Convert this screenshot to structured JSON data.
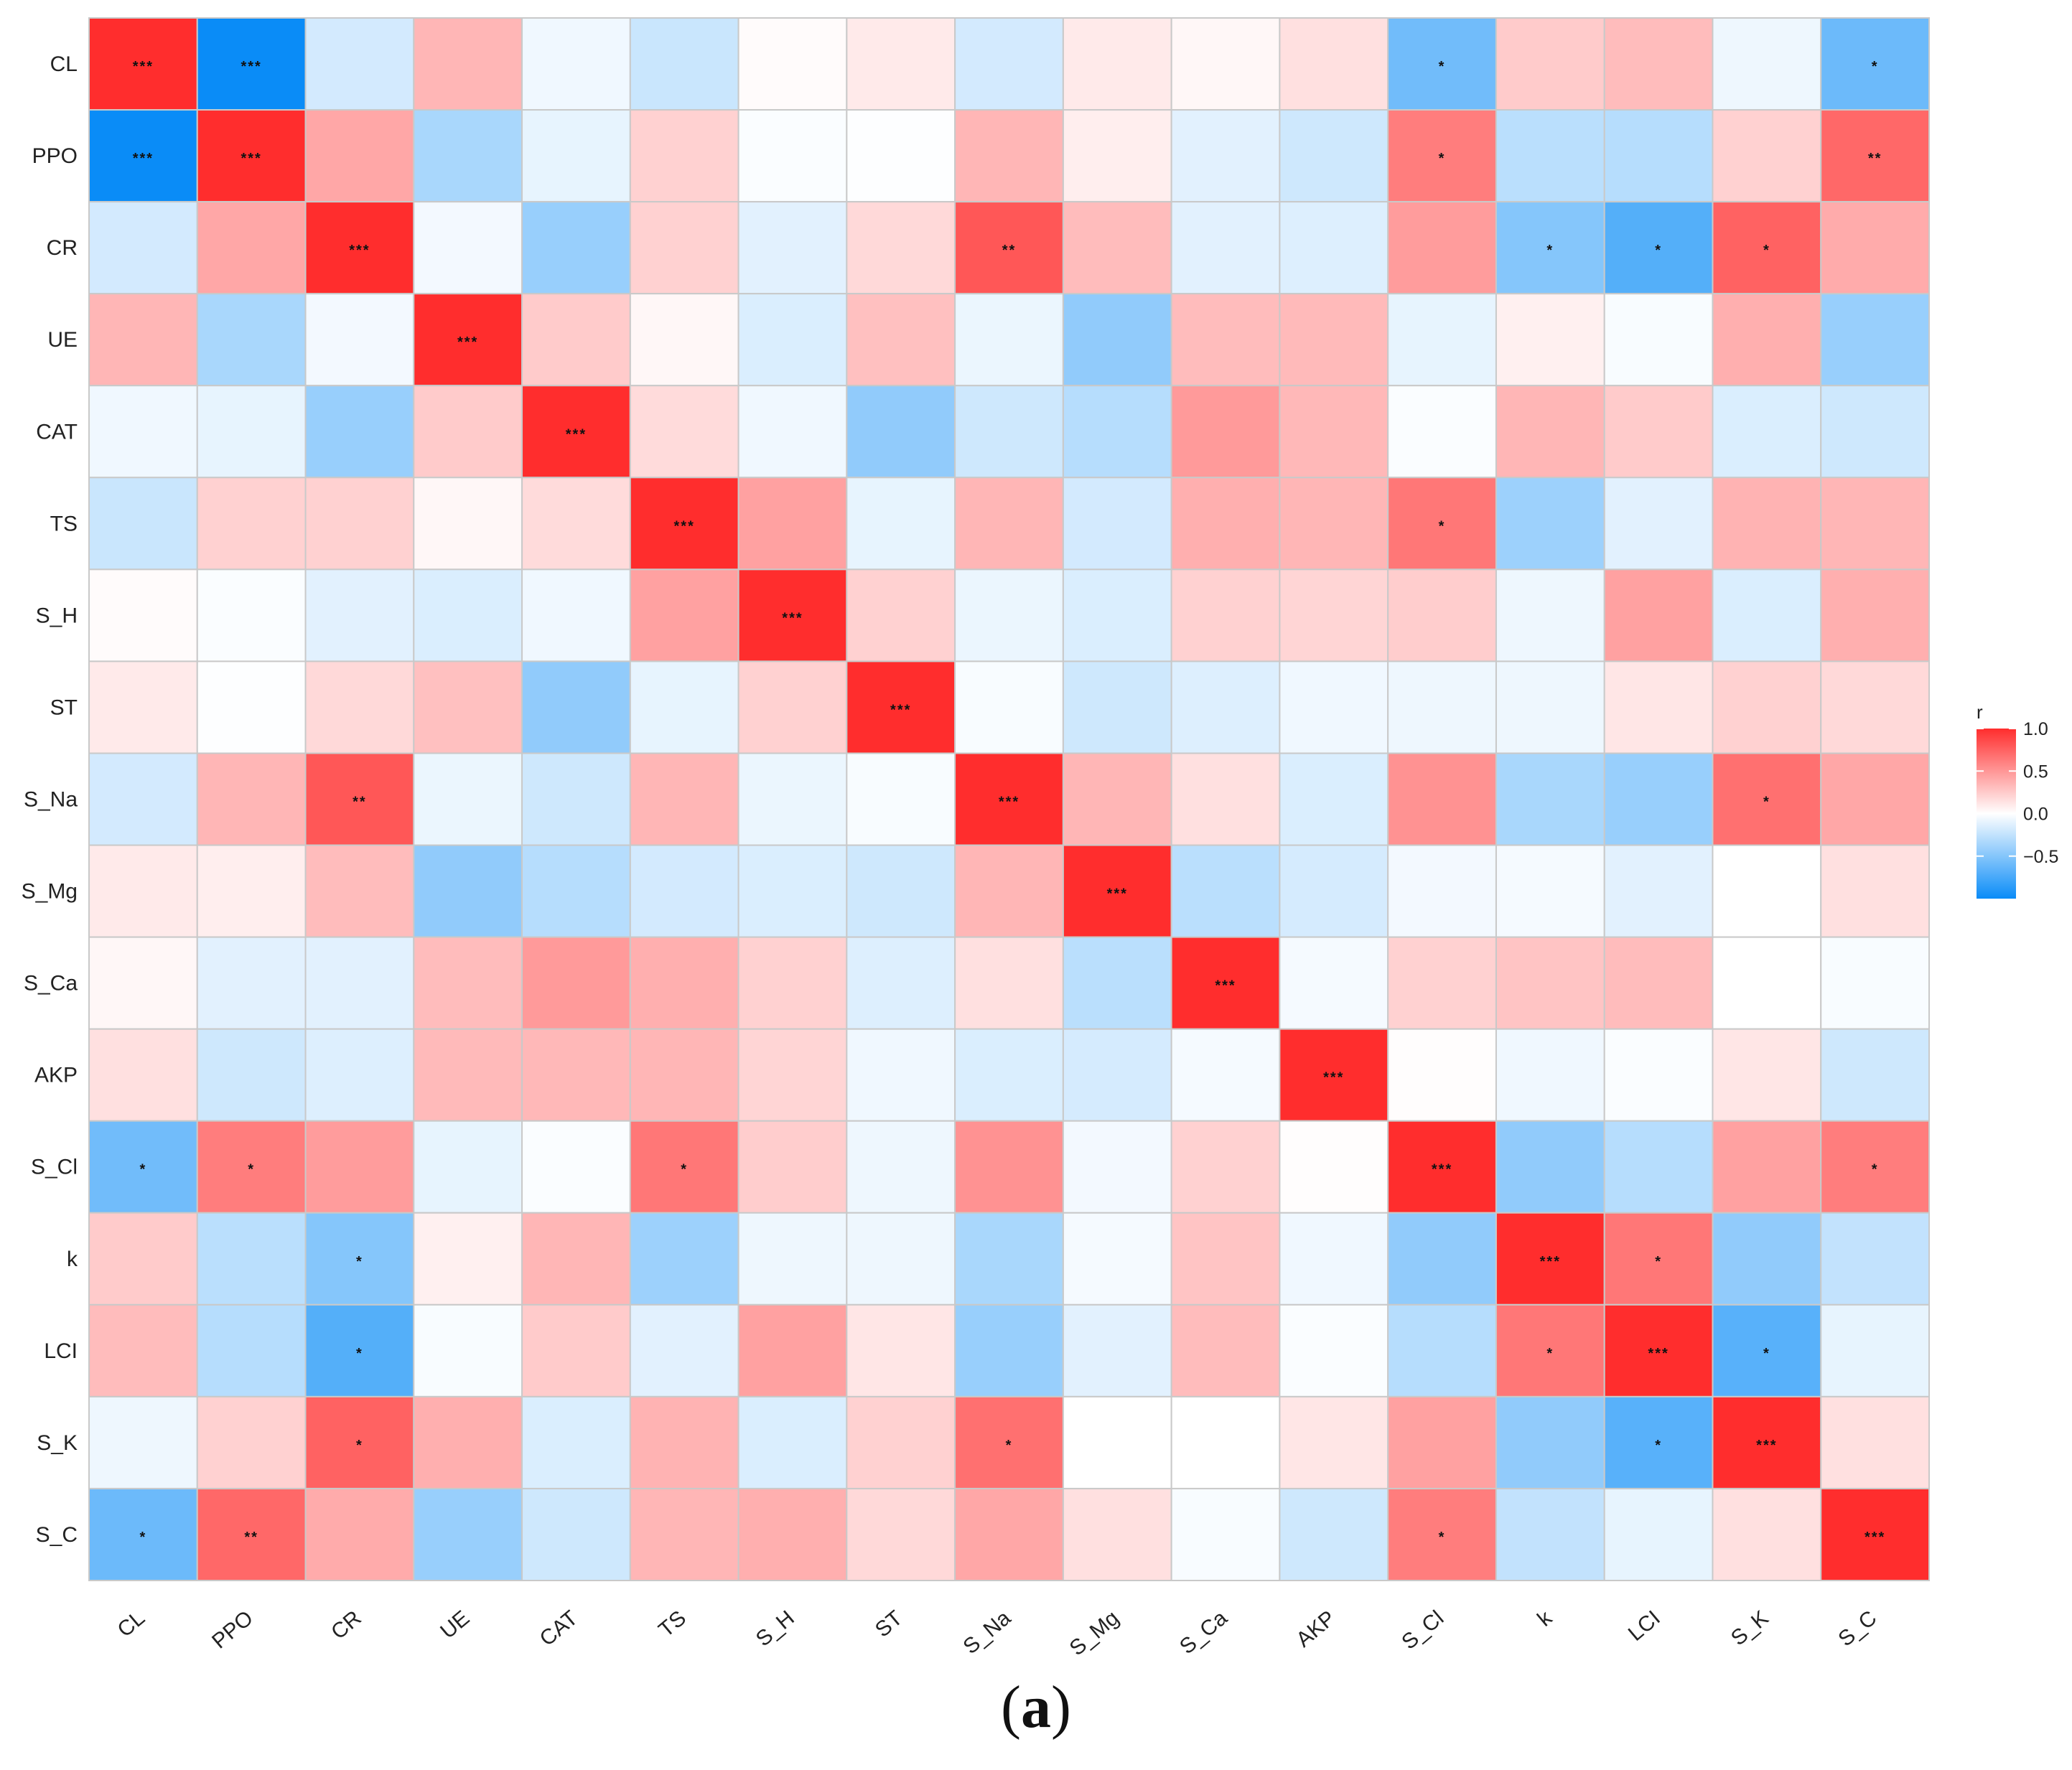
{
  "chart_data": {
    "type": "heatmap",
    "title": "",
    "panel_letter": "a",
    "variables": [
      "CL",
      "PPO",
      "CR",
      "UE",
      "CAT",
      "TS",
      "S_H",
      "ST",
      "S_Na",
      "S_Mg",
      "S_Ca",
      "AKP",
      "S_Cl",
      "k",
      "LCI",
      "S_K",
      "S_C"
    ],
    "matrix": [
      [
        1.0,
        -1.0,
        -0.18,
        0.35,
        -0.06,
        -0.22,
        0.02,
        0.1,
        -0.18,
        0.1,
        0.04,
        0.15,
        -0.58,
        0.25,
        0.32,
        -0.07,
        -0.6
      ],
      [
        -1.0,
        1.0,
        0.42,
        -0.35,
        -0.1,
        0.22,
        -0.02,
        -0.01,
        0.35,
        0.08,
        -0.12,
        -0.2,
        0.62,
        -0.28,
        -0.3,
        0.22,
        0.72
      ],
      [
        -0.18,
        0.42,
        1.0,
        -0.05,
        -0.42,
        0.22,
        -0.12,
        0.18,
        0.8,
        0.32,
        -0.12,
        -0.14,
        0.47,
        -0.5,
        -0.7,
        0.75,
        0.4
      ],
      [
        0.35,
        -0.35,
        -0.05,
        1.0,
        0.25,
        0.04,
        -0.15,
        0.3,
        -0.08,
        -0.45,
        0.32,
        0.33,
        -0.1,
        0.07,
        -0.03,
        0.38,
        -0.42
      ],
      [
        -0.06,
        -0.1,
        -0.42,
        0.25,
        1.0,
        0.17,
        -0.06,
        -0.45,
        -0.2,
        -0.3,
        0.48,
        0.34,
        -0.02,
        0.35,
        0.25,
        -0.15,
        -0.2
      ],
      [
        -0.22,
        0.22,
        0.22,
        0.04,
        0.17,
        1.0,
        0.45,
        -0.1,
        0.35,
        -0.18,
        0.38,
        0.35,
        0.65,
        -0.4,
        -0.12,
        0.36,
        0.35
      ],
      [
        0.02,
        -0.02,
        -0.12,
        -0.15,
        -0.06,
        0.45,
        1.0,
        0.22,
        -0.08,
        -0.15,
        0.22,
        0.2,
        0.24,
        -0.07,
        0.45,
        -0.15,
        0.38
      ],
      [
        0.1,
        -0.01,
        0.18,
        0.3,
        -0.45,
        -0.1,
        0.22,
        1.0,
        -0.03,
        -0.2,
        -0.14,
        -0.06,
        -0.07,
        -0.07,
        0.12,
        0.22,
        0.18
      ],
      [
        -0.18,
        0.35,
        0.8,
        -0.08,
        -0.2,
        0.35,
        -0.08,
        -0.03,
        1.0,
        0.35,
        0.15,
        -0.15,
        0.52,
        -0.35,
        -0.42,
        0.68,
        0.42
      ],
      [
        0.1,
        0.08,
        0.32,
        -0.45,
        -0.3,
        -0.18,
        -0.15,
        -0.2,
        0.35,
        1.0,
        -0.28,
        -0.17,
        -0.05,
        -0.04,
        -0.12,
        0.0,
        0.15
      ],
      [
        0.04,
        -0.12,
        -0.12,
        0.32,
        0.48,
        0.38,
        0.22,
        -0.14,
        0.15,
        -0.28,
        1.0,
        -0.04,
        0.22,
        0.28,
        0.32,
        0.0,
        -0.03
      ],
      [
        0.15,
        -0.2,
        -0.14,
        0.33,
        0.34,
        0.35,
        0.2,
        -0.06,
        -0.15,
        -0.17,
        -0.04,
        1.0,
        0.01,
        -0.06,
        -0.02,
        0.12,
        -0.2
      ],
      [
        -0.58,
        0.62,
        0.47,
        -0.1,
        -0.02,
        0.65,
        0.24,
        -0.07,
        0.52,
        -0.05,
        0.22,
        0.01,
        1.0,
        -0.45,
        -0.3,
        0.45,
        0.62
      ],
      [
        0.25,
        -0.28,
        -0.5,
        0.07,
        0.35,
        -0.4,
        -0.07,
        -0.07,
        -0.35,
        -0.04,
        0.28,
        -0.06,
        -0.45,
        1.0,
        0.65,
        -0.45,
        -0.25
      ],
      [
        0.32,
        -0.3,
        -0.7,
        -0.03,
        0.25,
        -0.12,
        0.45,
        0.12,
        -0.42,
        -0.12,
        0.32,
        -0.02,
        -0.3,
        0.65,
        1.0,
        -0.68,
        -0.1
      ],
      [
        -0.07,
        0.22,
        0.75,
        0.38,
        -0.15,
        0.36,
        -0.15,
        0.22,
        0.68,
        0.0,
        0.0,
        0.12,
        0.45,
        -0.45,
        -0.68,
        1.0,
        0.15
      ],
      [
        -0.6,
        0.72,
        0.4,
        -0.42,
        -0.2,
        0.35,
        0.38,
        0.18,
        0.42,
        0.15,
        -0.03,
        -0.2,
        0.62,
        -0.25,
        -0.1,
        0.15,
        1.0
      ]
    ],
    "significance": [
      [
        "***",
        "***",
        "",
        "",
        "",
        "",
        "",
        "",
        "",
        "",
        "",
        "",
        "*",
        "",
        "",
        "",
        "*"
      ],
      [
        "***",
        "***",
        "",
        "",
        "",
        "",
        "",
        "",
        "",
        "",
        "",
        "",
        "*",
        "",
        "",
        "",
        "**"
      ],
      [
        "",
        "",
        "***",
        "",
        "",
        "",
        "",
        "",
        "**",
        "",
        "",
        "",
        "",
        "*",
        "*",
        "*",
        ""
      ],
      [
        "",
        "",
        "",
        "***",
        "",
        "",
        "",
        "",
        "",
        "",
        "",
        "",
        "",
        "",
        "",
        "",
        ""
      ],
      [
        "",
        "",
        "",
        "",
        "***",
        "",
        "",
        "",
        "",
        "",
        "",
        "",
        "",
        "",
        "",
        "",
        ""
      ],
      [
        "",
        "",
        "",
        "",
        "",
        "***",
        "",
        "",
        "",
        "",
        "",
        "",
        "*",
        "",
        "",
        "",
        ""
      ],
      [
        "",
        "",
        "",
        "",
        "",
        "",
        "***",
        "",
        "",
        "",
        "",
        "",
        "",
        "",
        "",
        "",
        ""
      ],
      [
        "",
        "",
        "",
        "",
        "",
        "",
        "",
        "***",
        "",
        "",
        "",
        "",
        "",
        "",
        "",
        "",
        ""
      ],
      [
        "",
        "",
        "**",
        "",
        "",
        "",
        "",
        "",
        "***",
        "",
        "",
        "",
        "",
        "",
        "",
        "*",
        ""
      ],
      [
        "",
        "",
        "",
        "",
        "",
        "",
        "",
        "",
        "",
        "***",
        "",
        "",
        "",
        "",
        "",
        "",
        ""
      ],
      [
        "",
        "",
        "",
        "",
        "",
        "",
        "",
        "",
        "",
        "",
        "***",
        "",
        "",
        "",
        "",
        "",
        ""
      ],
      [
        "",
        "",
        "",
        "",
        "",
        "",
        "",
        "",
        "",
        "",
        "",
        "***",
        "",
        "",
        "",
        "",
        ""
      ],
      [
        "*",
        "*",
        "",
        "",
        "",
        "*",
        "",
        "",
        "",
        "",
        "",
        "",
        "***",
        "",
        "",
        "",
        "*"
      ],
      [
        "",
        "",
        "*",
        "",
        "",
        "",
        "",
        "",
        "",
        "",
        "",
        "",
        "",
        "***",
        "*",
        "",
        ""
      ],
      [
        "",
        "",
        "*",
        "",
        "",
        "",
        "",
        "",
        "",
        "",
        "",
        "",
        "",
        "*",
        "***",
        "*",
        ""
      ],
      [
        "",
        "",
        "*",
        "",
        "",
        "",
        "",
        "",
        "*",
        "",
        "",
        "",
        "",
        "",
        "*",
        "***",
        ""
      ],
      [
        "*",
        "**",
        "",
        "",
        "",
        "",
        "",
        "",
        "",
        "",
        "",
        "",
        "*",
        "",
        "",
        "",
        "***"
      ]
    ],
    "legend": {
      "title": "r",
      "tick_labels": [
        "1.0",
        "0.5",
        "0.0",
        "−0.5"
      ],
      "tick_values": [
        1.0,
        0.5,
        0.0,
        -0.5
      ],
      "range": [
        -1.0,
        1.0
      ],
      "placement": "right"
    },
    "colors": {
      "negative": "#0a8cf7",
      "neutral": "#ffffff",
      "positive": "#ff2d2d",
      "border": "#c9c9c9"
    }
  }
}
